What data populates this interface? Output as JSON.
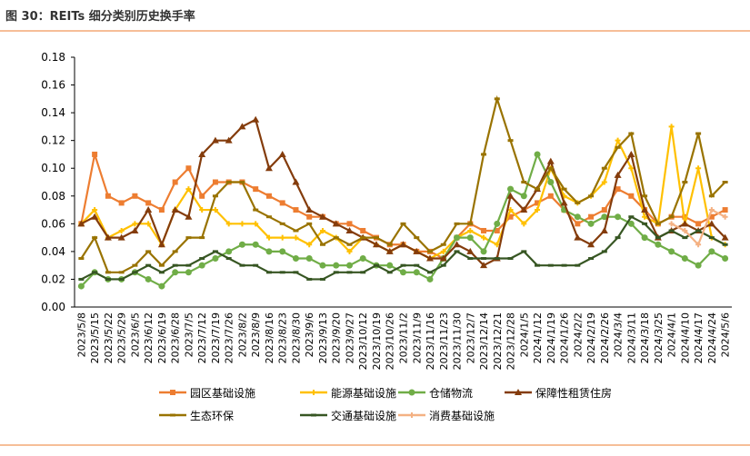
{
  "chart_data": {
    "type": "line",
    "title": "图 30：REITs 细分类别历史换手率",
    "categories": [
      "2023/5/8",
      "2023/5/15",
      "2023/5/22",
      "2023/5/29",
      "2023/6/5",
      "2023/6/12",
      "2023/6/19",
      "2023/6/28",
      "2023/7/5",
      "2023/7/12",
      "2023/7/19",
      "2023/7/26",
      "2023/8/2",
      "2023/8/9",
      "2023/8/16",
      "2023/8/23",
      "2023/8/30",
      "2023/9/6",
      "2023/9/13",
      "2023/9/20",
      "2023/9/27",
      "2023/10/12",
      "2023/10/19",
      "2023/10/26",
      "2023/11/2",
      "2023/11/9",
      "2023/11/16",
      "2023/11/23",
      "2023/11/30",
      "2023/12/7",
      "2023/12/14",
      "2023/12/21",
      "2023/12/28",
      "2024/1/5",
      "2024/1/12",
      "2024/1/19",
      "2024/1/26",
      "2024/2/2",
      "2024/2/19",
      "2024/2/26",
      "2024/3/4",
      "2024/3/11",
      "2024/3/18",
      "2024/3/25",
      "2024/4/1",
      "2024/4/10",
      "2024/4/17",
      "2024/4/24",
      "2024/5/6"
    ],
    "series": [
      {
        "name": "园区基础设施",
        "color": "#ED7D31",
        "marker": "square",
        "values": [
          0.06,
          0.11,
          0.08,
          0.075,
          0.08,
          0.075,
          0.07,
          0.09,
          0.1,
          0.08,
          0.09,
          0.09,
          0.09,
          0.085,
          0.08,
          0.075,
          0.07,
          0.065,
          0.065,
          0.06,
          0.06,
          0.055,
          0.05,
          0.045,
          0.045,
          0.04,
          0.04,
          0.035,
          0.05,
          0.06,
          0.055,
          0.055,
          0.065,
          0.07,
          0.075,
          0.08,
          0.07,
          0.06,
          0.065,
          0.07,
          0.085,
          0.08,
          0.07,
          0.06,
          0.065,
          0.065,
          0.06,
          0.065,
          0.07
        ]
      },
      {
        "name": "能源基础设施",
        "color": "#FFC000",
        "marker": "star",
        "values": [
          0.06,
          0.07,
          0.05,
          0.055,
          0.06,
          0.06,
          0.045,
          0.07,
          0.085,
          0.07,
          0.07,
          0.06,
          0.06,
          0.06,
          0.05,
          0.05,
          0.05,
          0.045,
          0.055,
          0.05,
          0.04,
          0.05,
          0.045,
          0.04,
          0.045,
          0.04,
          0.035,
          0.04,
          0.05,
          0.055,
          0.05,
          0.045,
          0.07,
          0.06,
          0.07,
          0.1,
          0.08,
          0.075,
          0.08,
          0.09,
          0.12,
          0.1,
          0.065,
          0.06,
          0.13,
          0.06,
          0.1,
          0.05,
          0.045
        ]
      },
      {
        "name": "仓储物流",
        "color": "#70AD47",
        "marker": "circle",
        "values": [
          0.015,
          0.025,
          0.02,
          0.02,
          0.025,
          0.02,
          0.015,
          0.025,
          0.025,
          0.03,
          0.035,
          0.04,
          0.045,
          0.045,
          0.04,
          0.04,
          0.035,
          0.035,
          0.03,
          0.03,
          0.03,
          0.035,
          0.03,
          0.03,
          0.025,
          0.025,
          0.02,
          0.035,
          0.05,
          0.05,
          0.04,
          0.06,
          0.085,
          0.08,
          0.11,
          0.09,
          0.07,
          0.065,
          0.06,
          0.065,
          0.065,
          0.06,
          0.05,
          0.045,
          0.04,
          0.035,
          0.03,
          0.04,
          0.035
        ]
      },
      {
        "name": "保障性租赁住房",
        "color": "#843C0C",
        "marker": "triangle",
        "values": [
          0.06,
          0.065,
          0.05,
          0.05,
          0.055,
          0.07,
          0.045,
          0.07,
          0.065,
          0.11,
          0.12,
          0.12,
          0.13,
          0.135,
          0.1,
          0.11,
          0.09,
          0.07,
          0.065,
          0.06,
          0.055,
          0.05,
          0.045,
          0.04,
          0.045,
          0.04,
          0.035,
          0.035,
          0.045,
          0.04,
          0.03,
          0.035,
          0.08,
          0.07,
          0.085,
          0.105,
          0.075,
          0.05,
          0.045,
          0.055,
          0.095,
          0.11,
          0.07,
          0.05,
          0.055,
          0.06,
          0.055,
          0.06,
          0.05
        ]
      },
      {
        "name": "生态环保",
        "color": "#997300",
        "marker": "dash",
        "values": [
          0.035,
          0.05,
          0.025,
          0.025,
          0.03,
          0.04,
          0.03,
          0.04,
          0.05,
          0.05,
          0.08,
          0.09,
          0.09,
          0.07,
          0.065,
          0.06,
          0.055,
          0.06,
          0.045,
          0.05,
          0.045,
          0.05,
          0.05,
          0.045,
          0.06,
          0.05,
          0.04,
          0.045,
          0.06,
          0.06,
          0.11,
          0.15,
          0.12,
          0.09,
          0.085,
          0.1,
          0.085,
          0.075,
          0.08,
          0.1,
          0.115,
          0.125,
          0.08,
          0.06,
          0.065,
          0.09,
          0.125,
          0.08,
          0.09
        ]
      },
      {
        "name": "交通基础设施",
        "color": "#375623",
        "marker": "dash",
        "values": [
          0.02,
          0.025,
          0.02,
          0.02,
          0.025,
          0.03,
          0.025,
          0.03,
          0.03,
          0.035,
          0.04,
          0.035,
          0.03,
          0.03,
          0.025,
          0.025,
          0.025,
          0.02,
          0.02,
          0.025,
          0.025,
          0.025,
          0.03,
          0.025,
          0.03,
          0.03,
          0.025,
          0.03,
          0.04,
          0.035,
          0.035,
          0.035,
          0.035,
          0.04,
          0.03,
          0.03,
          0.03,
          0.03,
          0.035,
          0.04,
          0.05,
          0.065,
          0.06,
          0.05,
          0.055,
          0.05,
          0.055,
          0.05,
          0.045
        ]
      },
      {
        "name": "消费基础设施",
        "color": "#F4B183",
        "marker": "star",
        "values": [
          null,
          null,
          null,
          null,
          null,
          null,
          null,
          null,
          null,
          null,
          null,
          null,
          null,
          null,
          null,
          null,
          null,
          null,
          null,
          null,
          null,
          null,
          null,
          null,
          null,
          null,
          null,
          null,
          null,
          null,
          null,
          null,
          null,
          null,
          null,
          null,
          null,
          null,
          null,
          null,
          null,
          null,
          null,
          null,
          0.06,
          0.055,
          0.045,
          0.07,
          0.065
        ]
      }
    ],
    "ylim": [
      0,
      0.18
    ],
    "yticks": [
      {
        "value": 0,
        "label": "0.00"
      },
      0.02,
      0.04,
      0.06,
      0.08,
      {
        "value": 0.1,
        "label": "0.10"
      },
      0.12,
      0.14,
      0.16,
      0.18
    ]
  }
}
